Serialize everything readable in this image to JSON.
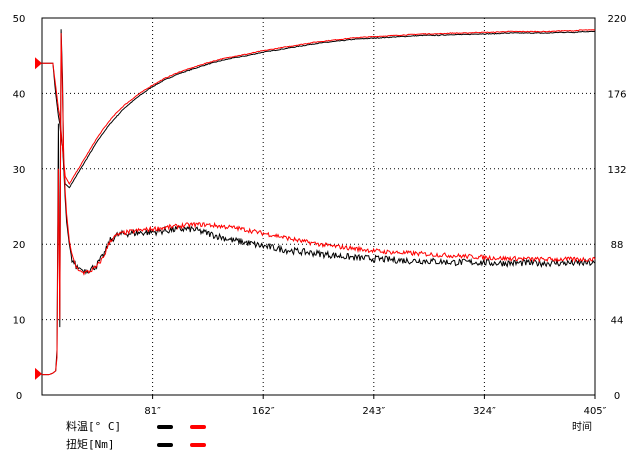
{
  "chart_data": {
    "type": "line",
    "title": "",
    "xlabel": "时间",
    "x_tick_labels": [
      "81″",
      "162″",
      "243″",
      "324″",
      "405″"
    ],
    "x_ticks": [
      81,
      162,
      243,
      324,
      405
    ],
    "xlim": [
      0,
      405
    ],
    "left_axis": {
      "ylim": [
        0,
        50
      ],
      "ticks": [
        0,
        10,
        20,
        30,
        40,
        50
      ]
    },
    "right_axis": {
      "ylim": [
        0,
        220
      ],
      "ticks": [
        0,
        44,
        88,
        132,
        176,
        220
      ]
    },
    "grid": true,
    "legend": {
      "placement": "bottom-left",
      "rows": [
        {
          "label": "料温[° C]",
          "colors": [
            "#000000",
            "#ff0000"
          ]
        },
        {
          "label": "扭矩[Nm]",
          "colors": [
            "#000000",
            "#ff0000"
          ]
        }
      ]
    },
    "markers": [
      {
        "axis": "left",
        "value": 44,
        "color": "#ff0000"
      },
      {
        "axis": "left",
        "value": 2.8,
        "color": "#ff0000"
      }
    ],
    "series": [
      {
        "group": "料温",
        "color": "#000000",
        "noise": 0.05,
        "x": [
          0,
          5,
          8,
          10,
          12,
          13,
          14,
          15,
          16,
          17,
          20,
          25,
          30,
          35,
          40,
          45,
          50,
          55,
          60,
          70,
          80,
          90,
          100,
          110,
          120,
          130,
          140,
          150,
          160,
          170,
          180,
          190,
          200,
          210,
          220,
          230,
          240,
          250,
          260,
          270,
          280,
          290,
          300,
          310,
          320,
          330,
          340,
          350,
          360,
          370,
          380,
          390,
          395,
          400,
          405
        ],
        "y": [
          44,
          44,
          44,
          40,
          37,
          36,
          34,
          33,
          30,
          28,
          27.5,
          29,
          30.5,
          32,
          33.5,
          34.8,
          36,
          37,
          38,
          39.5,
          40.8,
          41.8,
          42.6,
          43.2,
          43.8,
          44.3,
          44.7,
          45.0,
          45.4,
          45.7,
          46.0,
          46.3,
          46.6,
          46.8,
          47.0,
          47.2,
          47.3,
          47.4,
          47.5,
          47.6,
          47.7,
          47.7,
          47.8,
          47.8,
          47.9,
          47.9,
          48.0,
          48.0,
          48.0,
          48.0,
          48.1,
          48.1,
          48.2,
          48.2,
          48.2
        ]
      },
      {
        "group": "料温",
        "color": "#ff0000",
        "noise": 0.05,
        "x": [
          0,
          5,
          8,
          10,
          12,
          13,
          14,
          15,
          16,
          17,
          20,
          25,
          30,
          35,
          40,
          45,
          50,
          55,
          60,
          70,
          80,
          90,
          100,
          110,
          120,
          130,
          140,
          150,
          160,
          170,
          180,
          190,
          200,
          210,
          220,
          230,
          240,
          250,
          260,
          270,
          280,
          290,
          300,
          310,
          320,
          330,
          340,
          350,
          360,
          370,
          380,
          390,
          395,
          400,
          405
        ],
        "y": [
          44,
          44,
          44,
          41,
          38,
          37,
          35,
          33,
          31,
          29,
          28,
          29.5,
          31,
          32.5,
          34,
          35.3,
          36.5,
          37.5,
          38.4,
          39.8,
          41.0,
          42.0,
          42.8,
          43.4,
          44.0,
          44.5,
          44.9,
          45.2,
          45.6,
          45.9,
          46.2,
          46.5,
          46.8,
          47.0,
          47.2,
          47.4,
          47.5,
          47.6,
          47.7,
          47.8,
          47.9,
          47.9,
          48.0,
          48.0,
          48.1,
          48.1,
          48.2,
          48.2,
          48.2,
          48.2,
          48.3,
          48.3,
          48.4,
          48.4,
          48.4
        ]
      },
      {
        "group": "扭矩",
        "color": "#000000",
        "noise": 0.45,
        "x": [
          0,
          5,
          8,
          10,
          11,
          12,
          13,
          14,
          15,
          16,
          17,
          18,
          20,
          22,
          25,
          28,
          30,
          35,
          40,
          45,
          50,
          55,
          60,
          70,
          80,
          90,
          100,
          110,
          120,
          130,
          140,
          150,
          160,
          170,
          180,
          190,
          200,
          210,
          220,
          230,
          240,
          250,
          260,
          270,
          280,
          290,
          300,
          310,
          320,
          330,
          340,
          350,
          360,
          370,
          380,
          390,
          400,
          405
        ],
        "y": [
          2.7,
          2.7,
          2.9,
          3.2,
          6,
          36,
          9,
          48.5,
          42,
          30,
          26,
          23,
          20,
          18,
          17,
          16.8,
          16.5,
          16.6,
          17.2,
          18.5,
          20.5,
          21.2,
          21.4,
          21.5,
          21.6,
          21.8,
          22,
          22,
          21.5,
          21,
          20.5,
          20.2,
          19.8,
          19.5,
          19.2,
          19,
          18.8,
          18.6,
          18.4,
          18.2,
          18.1,
          18,
          17.9,
          17.8,
          17.8,
          17.7,
          17.6,
          17.6,
          17.6,
          17.5,
          17.5,
          17.5,
          17.5,
          17.5,
          17.5,
          17.5,
          17.5,
          17.5
        ]
      },
      {
        "group": "扭矩",
        "color": "#ff0000",
        "noise": 0.3,
        "x": [
          0,
          5,
          8,
          10,
          11,
          12,
          13,
          14,
          15,
          16,
          17,
          18,
          20,
          22,
          25,
          28,
          30,
          35,
          40,
          45,
          50,
          55,
          60,
          70,
          80,
          90,
          100,
          110,
          120,
          130,
          140,
          150,
          160,
          170,
          180,
          190,
          200,
          210,
          220,
          230,
          240,
          250,
          260,
          270,
          280,
          290,
          300,
          310,
          320,
          330,
          340,
          350,
          360,
          370,
          380,
          390,
          400,
          405
        ],
        "y": [
          2.7,
          2.7,
          2.9,
          3.2,
          5,
          30,
          10,
          48,
          40,
          31,
          27,
          24,
          20.5,
          18.5,
          17,
          16.5,
          16.2,
          16.4,
          17,
          18.3,
          20.5,
          21.2,
          21.5,
          21.8,
          22,
          22.2,
          22.4,
          22.6,
          22.6,
          22.4,
          22.2,
          21.9,
          21.5,
          21.2,
          20.8,
          20.4,
          20.1,
          19.8,
          19.6,
          19.4,
          19.2,
          19,
          18.9,
          18.8,
          18.7,
          18.6,
          18.5,
          18.4,
          18.3,
          18.2,
          18.1,
          18.1,
          18,
          18,
          18,
          18,
          18,
          18
        ]
      }
    ]
  }
}
